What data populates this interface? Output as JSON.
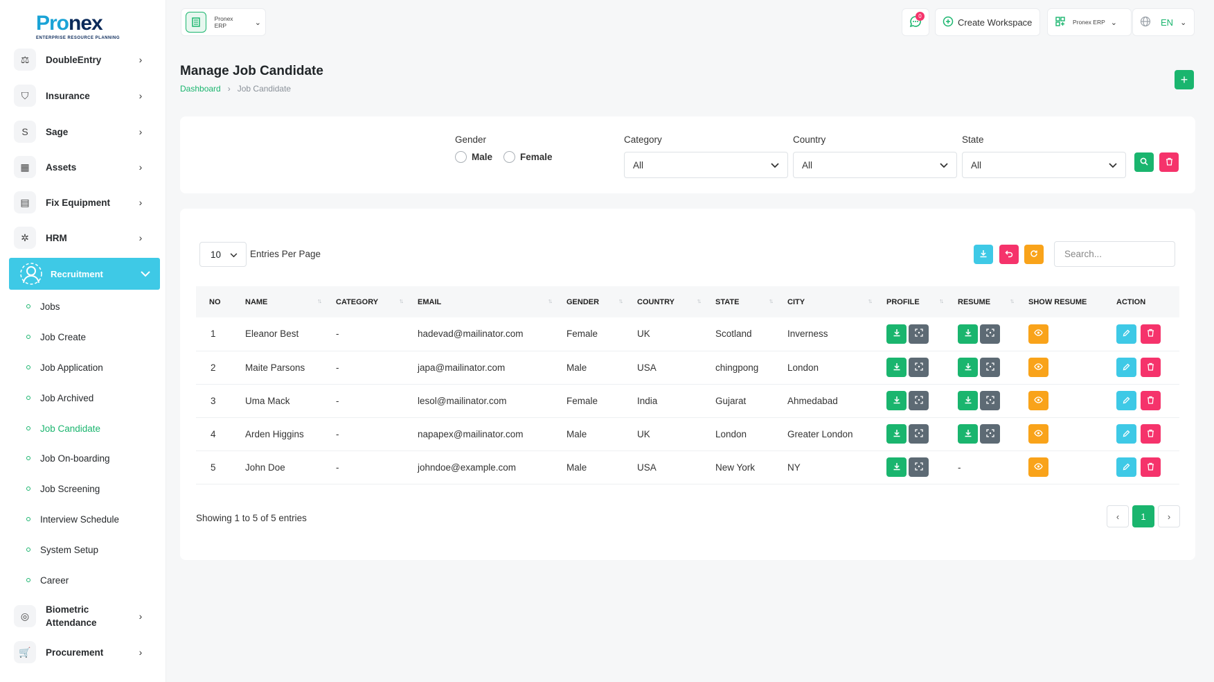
{
  "brand": {
    "name_a": "Pro",
    "name_b": "nex",
    "tagline": "ENTERPRISE RESOURCE PLANNING"
  },
  "sidebar": {
    "items": [
      {
        "label": "DoubleEntry"
      },
      {
        "label": "Insurance"
      },
      {
        "label": "Sage"
      },
      {
        "label": "Assets"
      },
      {
        "label": "Fix Equipment"
      },
      {
        "label": "HRM"
      }
    ],
    "active": {
      "label": "Recruitment"
    },
    "sub_items": [
      "Jobs",
      "Job Create",
      "Job Application",
      "Job Archived",
      "Job Candidate",
      "Job On-boarding",
      "Job Screening",
      "Interview Schedule",
      "System Setup",
      "Career"
    ],
    "bottom_items": [
      {
        "label": "Biometric Attendance"
      },
      {
        "label": "Procurement"
      }
    ]
  },
  "topbar": {
    "workspace_small": "Pronex ERP",
    "notif_count": "0",
    "create_workspace": "Create Workspace",
    "erp_label": "Pronex ERP",
    "lang": "EN"
  },
  "page": {
    "title": "Manage Job Candidate",
    "crumb_home": "Dashboard",
    "crumb_current": "Job Candidate"
  },
  "filters": {
    "gender_label": "Gender",
    "male": "Male",
    "female": "Female",
    "category_label": "Category",
    "category_value": "All",
    "country_label": "Country",
    "country_value": "All",
    "state_label": "State",
    "state_value": "All"
  },
  "table": {
    "per_page": "10",
    "per_page_label": "Entries Per Page",
    "search_placeholder": "Search...",
    "headers": [
      "NO",
      "NAME",
      "CATEGORY",
      "EMAIL",
      "GENDER",
      "COUNTRY",
      "STATE",
      "CITY",
      "PROFILE",
      "RESUME",
      "SHOW RESUME",
      "ACTION"
    ],
    "rows": [
      {
        "no": "1",
        "name": "Eleanor Best",
        "category": "-",
        "email": "hadevad@mailinator.com",
        "gender": "Female",
        "country": "UK",
        "state": "Scotland",
        "city": "Inverness",
        "resume": "",
        "has_resume": true
      },
      {
        "no": "2",
        "name": "Maite Parsons",
        "category": "-",
        "email": "japa@mailinator.com",
        "gender": "Male",
        "country": "USA",
        "state": "chingpong",
        "city": "London",
        "resume": "",
        "has_resume": true
      },
      {
        "no": "3",
        "name": "Uma Mack",
        "category": "-",
        "email": "lesol@mailinator.com",
        "gender": "Female",
        "country": "India",
        "state": "Gujarat",
        "city": "Ahmedabad",
        "resume": "",
        "has_resume": true
      },
      {
        "no": "4",
        "name": "Arden Higgins",
        "category": "-",
        "email": "napapex@mailinator.com",
        "gender": "Male",
        "country": "UK",
        "state": "London",
        "city": "Greater London",
        "resume": "",
        "has_resume": true
      },
      {
        "no": "5",
        "name": "John Doe",
        "category": "-",
        "email": "johndoe@example.com",
        "gender": "Male",
        "country": "USA",
        "state": "New York",
        "city": "NY",
        "resume": "-",
        "has_resume": false
      }
    ],
    "showing": "Showing 1 to 5 of 5 entries",
    "current_page": "1"
  },
  "colors": {
    "green": "#1ab56e",
    "cyan": "#3ec9e6",
    "pink": "#f5336b",
    "orange": "#f9a31a",
    "grey": "#5d6a74"
  }
}
